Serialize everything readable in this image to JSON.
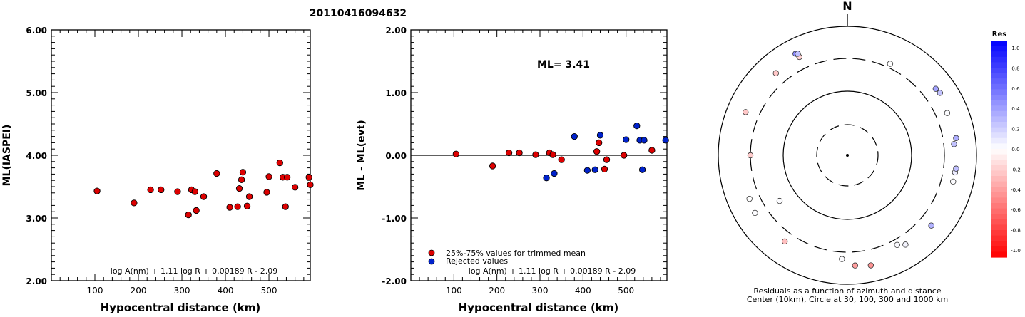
{
  "title": "20110416094632",
  "chart_data": [
    {
      "type": "scatter",
      "ylabel": "ML(IASPEI)",
      "xlabel": "Hypocentral distance (km)",
      "xlim": [
        0,
        595
      ],
      "ylim": [
        2.0,
        6.0
      ],
      "x_ticks": [
        "100",
        "200",
        "300",
        "400",
        "500"
      ],
      "x_tick_values": [
        100,
        200,
        300,
        400,
        500
      ],
      "y_ticks": [
        "2.00",
        "3.00",
        "4.00",
        "5.00",
        "6.00"
      ],
      "y_tick_values": [
        2,
        3,
        4,
        5,
        6
      ],
      "formula": "log A(nm) + 1.11 log R + 0.00189 R - 2.09",
      "marker_color": "#dd0000",
      "points": [
        [
          105,
          3.43
        ],
        [
          190,
          3.24
        ],
        [
          228,
          3.45
        ],
        [
          252,
          3.45
        ],
        [
          290,
          3.42
        ],
        [
          315,
          3.05
        ],
        [
          322,
          3.45
        ],
        [
          330,
          3.42
        ],
        [
          333,
          3.12
        ],
        [
          350,
          3.34
        ],
        [
          380,
          3.71
        ],
        [
          410,
          3.17
        ],
        [
          428,
          3.18
        ],
        [
          432,
          3.47
        ],
        [
          437,
          3.61
        ],
        [
          440,
          3.73
        ],
        [
          450,
          3.19
        ],
        [
          455,
          3.34
        ],
        [
          495,
          3.41
        ],
        [
          500,
          3.66
        ],
        [
          525,
          3.88
        ],
        [
          532,
          3.65
        ],
        [
          538,
          3.18
        ],
        [
          542,
          3.65
        ],
        [
          560,
          3.49
        ],
        [
          592,
          3.65
        ],
        [
          595,
          3.53
        ]
      ]
    },
    {
      "type": "scatter",
      "ylabel": "ML - ML(evt)",
      "xlabel": "Hypocentral distance (km)",
      "xlim": [
        0,
        595
      ],
      "ylim": [
        -2.0,
        2.0
      ],
      "x_ticks": [
        "100",
        "200",
        "300",
        "400",
        "500"
      ],
      "x_tick_values": [
        100,
        200,
        300,
        400,
        500
      ],
      "y_ticks": [
        "-2.00",
        "-1.00",
        "0.00",
        "1.00",
        "2.00"
      ],
      "y_tick_values": [
        -2,
        -1,
        0,
        1,
        2
      ],
      "annotation": "ML= 3.41",
      "formula": "log A(nm) + 1.11 log R + 0.00189 R - 2.09",
      "legend": [
        {
          "label": "25%-75% values for trimmed mean",
          "color": "#dd0000"
        },
        {
          "label": "Rejected values",
          "color": "#0022cc"
        }
      ],
      "series": [
        {
          "name": "25%-75% values for trimmed mean",
          "color": "#dd0000",
          "points": [
            [
              105,
              0.02
            ],
            [
              190,
              -0.17
            ],
            [
              228,
              0.04
            ],
            [
              252,
              0.04
            ],
            [
              290,
              0.01
            ],
            [
              322,
              0.04
            ],
            [
              330,
              0.01
            ],
            [
              350,
              -0.07
            ],
            [
              432,
              0.06
            ],
            [
              437,
              0.2
            ],
            [
              450,
              -0.22
            ],
            [
              455,
              -0.07
            ],
            [
              495,
              0.0
            ],
            [
              560,
              0.08
            ]
          ]
        },
        {
          "name": "Rejected values",
          "color": "#0022cc",
          "points": [
            [
              315,
              -0.36
            ],
            [
              333,
              -0.29
            ],
            [
              380,
              0.3
            ],
            [
              410,
              -0.24
            ],
            [
              428,
              -0.23
            ],
            [
              440,
              0.32
            ],
            [
              500,
              0.25
            ],
            [
              525,
              0.47
            ],
            [
              532,
              0.24
            ],
            [
              538,
              -0.23
            ],
            [
              542,
              0.24
            ],
            [
              592,
              0.24
            ]
          ]
        }
      ]
    },
    {
      "type": "polar-scatter",
      "north_label": "N",
      "caption_line1": "Residuals as a function of azimuth and distance",
      "caption_line2": "Center (10km), Circle at 30, 100, 300 and 1000 km",
      "rings_km": [
        30,
        100,
        300,
        1000
      ],
      "colorbar": {
        "title": "Res",
        "min": -1.0,
        "max": 1.0,
        "labels": [
          "1.0",
          "0.8",
          "0.6",
          "0.4",
          "0.2",
          "0.0",
          "-0.2",
          "-0.4",
          "-0.6",
          "-0.8",
          "-1.0"
        ]
      },
      "points": [
        {
          "azimuth": 334,
          "distance": 480,
          "residual": -0.17
        },
        {
          "azimuth": 319,
          "distance": 470,
          "residual": -0.22
        },
        {
          "azimuth": 293,
          "distance": 500,
          "residual": -0.22
        },
        {
          "azimuth": 270,
          "distance": 300,
          "residual": -0.2
        },
        {
          "azimuth": 246,
          "distance": 440,
          "residual": 0.0
        },
        {
          "azimuth": 238,
          "distance": 470,
          "residual": 0.01
        },
        {
          "azimuth": 236,
          "distance": 180,
          "residual": 0.01
        },
        {
          "azimuth": 216,
          "distance": 430,
          "residual": -0.25
        },
        {
          "azimuth": 183,
          "distance": 390,
          "residual": 0.01
        },
        {
          "azimuth": 176,
          "distance": 500,
          "residual": -0.38
        },
        {
          "azimuth": 168,
          "distance": 540,
          "residual": -0.42
        },
        {
          "azimuth": 151,
          "distance": 370,
          "residual": 0.02
        },
        {
          "azimuth": 147,
          "distance": 430,
          "residual": 0.04
        },
        {
          "azimuth": 130,
          "distance": 480,
          "residual": 0.3
        },
        {
          "azimuth": 104,
          "distance": 470,
          "residual": 0.01
        },
        {
          "azimuth": 99,
          "distance": 470,
          "residual": 0.07
        },
        {
          "azimuth": 97,
          "distance": 480,
          "residual": 0.25
        },
        {
          "azimuth": 84,
          "distance": 440,
          "residual": 0.24
        },
        {
          "azimuth": 81,
          "distance": 490,
          "residual": 0.32
        },
        {
          "azimuth": 67,
          "distance": 460,
          "residual": 0.01
        },
        {
          "azimuth": 56,
          "distance": 520,
          "residual": 0.24
        },
        {
          "azimuth": 53,
          "distance": 500,
          "residual": 0.36
        },
        {
          "azimuth": 25,
          "distance": 350,
          "residual": 0.0
        },
        {
          "azimuth": 333,
          "distance": 570,
          "residual": 0.47
        },
        {
          "azimuth": 334,
          "distance": 550,
          "residual": 0.25
        }
      ]
    }
  ]
}
